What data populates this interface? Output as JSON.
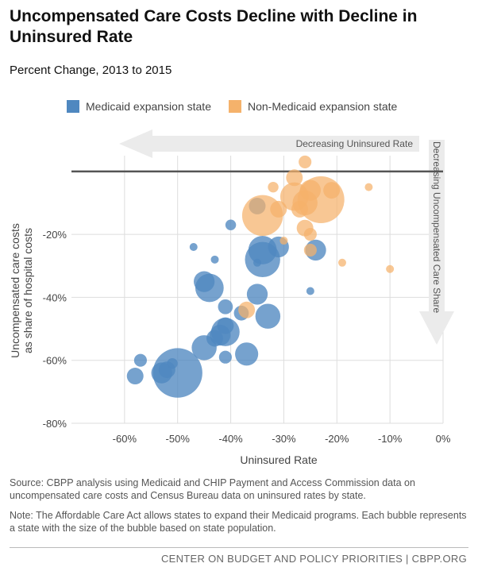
{
  "title": "Uncompensated Care Costs Decline with Decline in Uninsured Rate",
  "subtitle": "Percent Change, 2013 to 2015",
  "legend": [
    {
      "label": "Medicaid expansion state",
      "color": "#4f88c0"
    },
    {
      "label": "Non-Medicaid expansion state",
      "color": "#f5b26b"
    }
  ],
  "colors": {
    "medicaid": "#4f88c0",
    "non_medicaid": "#f5b26b",
    "arrow": "#ebebeb",
    "zero_line": "#555555",
    "grid": "#dddddd"
  },
  "chart_data": {
    "type": "scatter",
    "subtype": "bubble",
    "title": "Uncompensated Care Costs Decline with Decline in Uninsured Rate",
    "subtitle": "Percent Change, 2013 to 2015",
    "xlabel": "Uninsured Rate",
    "ylabel": "Uncompensated care costs as share of hospital costs",
    "xlim": [
      -70,
      0
    ],
    "ylim": [
      -80,
      5
    ],
    "xticks": [
      -60,
      -50,
      -40,
      -30,
      -20,
      -10,
      0
    ],
    "xtick_labels": [
      "-60%",
      "-50%",
      "-40%",
      "-30%",
      "-20%",
      "-10%",
      "0%"
    ],
    "yticks": [
      -20,
      -40,
      -60,
      -80
    ],
    "ytick_labels": [
      "-20%",
      "-40%",
      "-60%",
      "-80%"
    ],
    "grid": true,
    "arrows": {
      "horizontal": "Decreasing Uninsured Rate",
      "vertical": "Decreasing Uncompensated Care Share"
    },
    "series": [
      {
        "name": "Medicaid expansion state",
        "points": [
          {
            "x": -50,
            "y": -64,
            "size": 38.8
          },
          {
            "x": -58,
            "y": -65,
            "size": 4.4
          },
          {
            "x": -57,
            "y": -60,
            "size": 2.6
          },
          {
            "x": -53,
            "y": -64,
            "size": 6.9
          },
          {
            "x": -52,
            "y": -63,
            "size": 4.4
          },
          {
            "x": -51,
            "y": -61,
            "size": 1.8
          },
          {
            "x": -45,
            "y": -56,
            "size": 9.9
          },
          {
            "x": -43,
            "y": -53,
            "size": 4.4
          },
          {
            "x": -42,
            "y": -52,
            "size": 6.9
          },
          {
            "x": -41,
            "y": -51,
            "size": 12.8
          },
          {
            "x": -41,
            "y": -49,
            "size": 4.4
          },
          {
            "x": -41,
            "y": -59,
            "size": 2.6
          },
          {
            "x": -41,
            "y": -43,
            "size": 3.5
          },
          {
            "x": -37,
            "y": -58,
            "size": 8.5
          },
          {
            "x": -38,
            "y": -45,
            "size": 3.5
          },
          {
            "x": -44,
            "y": -37,
            "size": 12.8
          },
          {
            "x": -45,
            "y": -35,
            "size": 6.9
          },
          {
            "x": -34,
            "y": -28,
            "size": 19.7
          },
          {
            "x": -34,
            "y": -25,
            "size": 12.8
          },
          {
            "x": -33,
            "y": -46,
            "size": 9.9
          },
          {
            "x": -35,
            "y": -39,
            "size": 6.9
          },
          {
            "x": -31,
            "y": -24,
            "size": 6.9
          },
          {
            "x": -24,
            "y": -25,
            "size": 6.9
          },
          {
            "x": -35,
            "y": -11,
            "size": 4.4
          },
          {
            "x": -40,
            "y": -17,
            "size": 1.8
          },
          {
            "x": -47,
            "y": -24,
            "size": 1.0
          },
          {
            "x": -43,
            "y": -28,
            "size": 1.0
          },
          {
            "x": -25,
            "y": -38,
            "size": 1.0
          },
          {
            "x": -35,
            "y": -29,
            "size": 1.0
          }
        ]
      },
      {
        "name": "Non-Medicaid expansion state",
        "points": [
          {
            "x": -34,
            "y": -14,
            "size": 26.5
          },
          {
            "x": -23,
            "y": -9,
            "size": 34.7
          },
          {
            "x": -28,
            "y": -8,
            "size": 12.8
          },
          {
            "x": -26,
            "y": -10,
            "size": 9.9
          },
          {
            "x": -25,
            "y": -6,
            "size": 6.9
          },
          {
            "x": -27,
            "y": -12,
            "size": 4.4
          },
          {
            "x": -21,
            "y": -6,
            "size": 4.4
          },
          {
            "x": -28,
            "y": -2,
            "size": 4.4
          },
          {
            "x": -26,
            "y": 3,
            "size": 2.6
          },
          {
            "x": -26,
            "y": -18,
            "size": 4.4
          },
          {
            "x": -25,
            "y": -20,
            "size": 2.6
          },
          {
            "x": -25,
            "y": -25,
            "size": 2.6
          },
          {
            "x": -31,
            "y": -12,
            "size": 4.4
          },
          {
            "x": -32,
            "y": -5,
            "size": 1.8
          },
          {
            "x": -37,
            "y": -44,
            "size": 4.4
          },
          {
            "x": -30,
            "y": -22,
            "size": 1.0
          },
          {
            "x": -19,
            "y": -29,
            "size": 1.0
          },
          {
            "x": -14,
            "y": -5,
            "size": 1.0
          },
          {
            "x": -10,
            "y": -31,
            "size": 1.0
          }
        ]
      }
    ]
  },
  "notes": {
    "source": "Source: CBPP analysis using Medicaid and CHIP Payment and Access Commission data on uncompensated care costs and Census Bureau data on uninsured rates by state.",
    "note": "Note: The Affordable Care Act allows states to expand their Medicaid programs. Each bubble represents a state with the size of the bubble based on state population."
  },
  "footer": "CENTER ON BUDGET AND POLICY PRIORITIES | CBPP.ORG"
}
